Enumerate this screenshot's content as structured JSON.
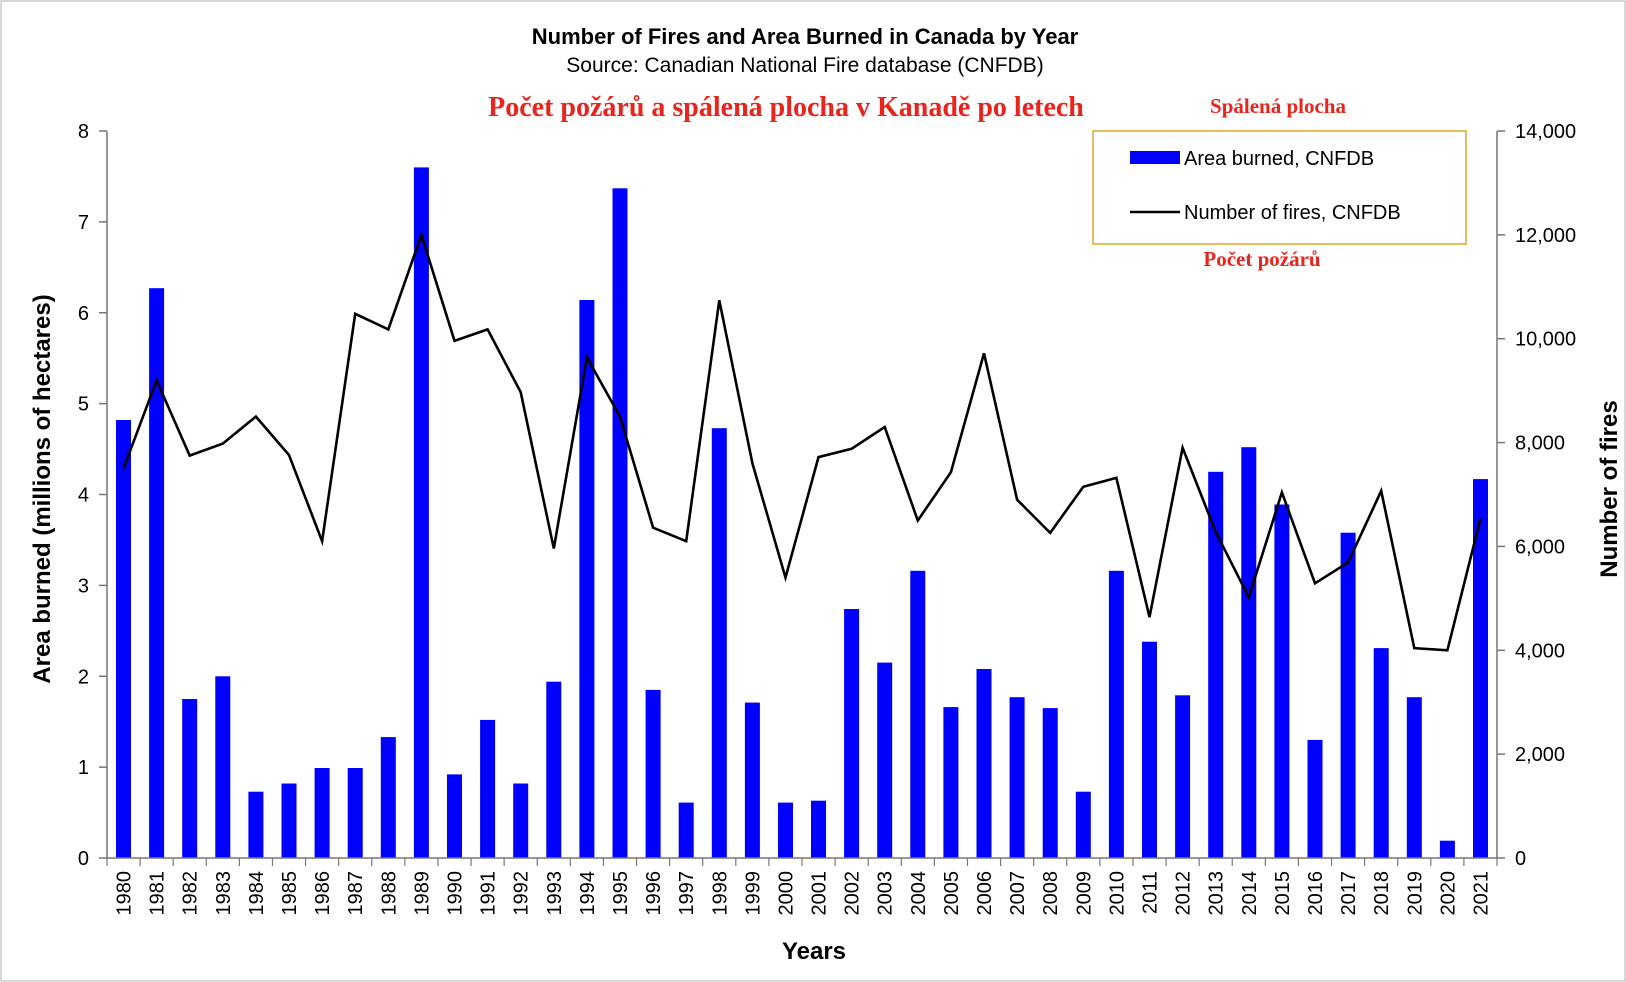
{
  "chart_data": {
    "type": "bar",
    "title": "Number of Fires and Area Burned in Canada by Year",
    "subtitle": "Source: Canadian National Fire database (CNFDB)",
    "annotation_title_cs": "Počet požárů a spálená plocha v Kanadě po letech",
    "annotation_area_cs": "Spálená plocha",
    "annotation_fires_cs": "Počet požárů",
    "xlabel": "Years",
    "ylabel_left": "Area burned (millions of hectares)",
    "ylabel_right": "Number of fires",
    "ylim_left": [
      0,
      8
    ],
    "ylim_right": [
      0,
      14000
    ],
    "yticks_left": [
      "0",
      "1",
      "2",
      "3",
      "4",
      "5",
      "6",
      "7",
      "8"
    ],
    "yticks_right": [
      "0",
      "2,000",
      "4,000",
      "6,000",
      "8,000",
      "10,000",
      "12,000",
      "14,000"
    ],
    "legend_position": "top-right",
    "grid": false,
    "categories": [
      "1980",
      "1981",
      "1982",
      "1983",
      "1984",
      "1985",
      "1986",
      "1987",
      "1988",
      "1989",
      "1990",
      "1991",
      "1992",
      "1993",
      "1994",
      "1995",
      "1996",
      "1997",
      "1998",
      "1999",
      "2000",
      "2001",
      "2002",
      "2003",
      "2004",
      "2005",
      "2006",
      "2007",
      "2008",
      "2009",
      "2010",
      "2011",
      "2012",
      "2013",
      "2014",
      "2015",
      "2016",
      "2017",
      "2018",
      "2019",
      "2020",
      "2021"
    ],
    "series": [
      {
        "name": "Area burned, CNFDB",
        "kind": "bar",
        "axis": "left",
        "color": "#0000ff",
        "values": [
          4.82,
          6.27,
          1.75,
          2.0,
          0.73,
          0.82,
          0.99,
          0.99,
          1.33,
          7.6,
          0.92,
          1.52,
          0.82,
          1.94,
          6.14,
          7.37,
          1.85,
          0.61,
          4.73,
          1.71,
          0.61,
          0.63,
          2.74,
          2.15,
          3.16,
          1.66,
          2.08,
          1.77,
          1.65,
          0.73,
          3.16,
          2.38,
          1.79,
          4.25,
          4.52,
          3.89,
          1.3,
          3.58,
          2.31,
          1.77,
          0.19,
          4.17
        ]
      },
      {
        "name": "Number of fires, CNFDB",
        "kind": "line",
        "axis": "right",
        "color": "#000000",
        "values": [
          7500,
          9200,
          7750,
          7980,
          8500,
          7760,
          6100,
          10480,
          10180,
          12000,
          9960,
          10180,
          8970,
          5960,
          9640,
          8500,
          6360,
          6100,
          10740,
          7600,
          5400,
          7720,
          7880,
          8300,
          6500,
          7430,
          9720,
          6900,
          6260,
          7150,
          7320,
          4640,
          7900,
          6280,
          5020,
          7040,
          5290,
          5690,
          7070,
          4040,
          4000,
          6540
        ]
      }
    ]
  }
}
